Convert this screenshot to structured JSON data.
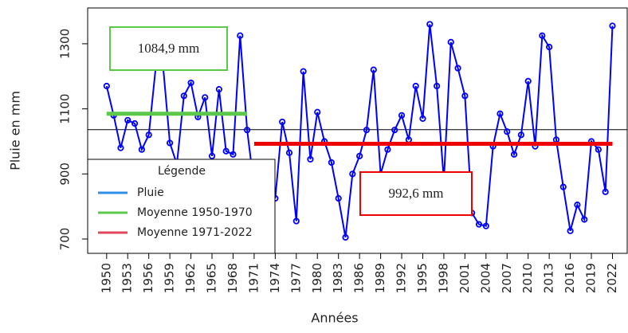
{
  "chart_data": {
    "type": "line",
    "x_label": "Années",
    "y_label": "Pluie en mm",
    "x": [
      1950,
      1951,
      1952,
      1953,
      1954,
      1955,
      1956,
      1957,
      1958,
      1959,
      1960,
      1961,
      1962,
      1963,
      1964,
      1965,
      1966,
      1967,
      1968,
      1969,
      1970,
      1971,
      1972,
      1973,
      1974,
      1975,
      1976,
      1977,
      1978,
      1979,
      1980,
      1981,
      1982,
      1983,
      1984,
      1985,
      1986,
      1987,
      1988,
      1989,
      1990,
      1991,
      1992,
      1993,
      1994,
      1995,
      1996,
      1997,
      1998,
      1999,
      2000,
      2001,
      2002,
      2003,
      2004,
      2005,
      2006,
      2007,
      2008,
      2009,
      2010,
      2011,
      2012,
      2013,
      2014,
      2015,
      2016,
      2017,
      2018,
      2019,
      2020,
      2021,
      2022
    ],
    "series": [
      {
        "name": "Pluie",
        "color": "#0000ff",
        "legend_color": "#2f8fe8",
        "values": [
          1170,
          1080,
          980,
          1065,
          1055,
          975,
          1020,
          1230,
          1240,
          995,
          930,
          1140,
          1180,
          1075,
          1135,
          955,
          1160,
          970,
          960,
          1325,
          1035,
          860,
          900,
          935,
          825,
          1060,
          965,
          755,
          1215,
          945,
          1090,
          1000,
          935,
          825,
          705,
          900,
          955,
          1035,
          1220,
          900,
          975,
          1035,
          1080,
          1005,
          1170,
          1070,
          1360,
          1170,
          880,
          1305,
          1225,
          1140,
          780,
          745,
          740,
          985,
          1085,
          1030,
          960,
          1020,
          1185,
          985,
          1325,
          1290,
          1005,
          860,
          725,
          805,
          760,
          1000,
          975,
          845,
          1355
        ]
      }
    ],
    "means": [
      {
        "name": "Moyenne 1950-1970",
        "color": "#5cc84a",
        "from": 1950,
        "to": 1970,
        "value": 1084.9,
        "value_label": "1084,9 mm"
      },
      {
        "name": "Moyenne 1971-2022",
        "color": "#ee0000",
        "legend_color": "#e0455a",
        "from": 1971,
        "to": 2022,
        "value": 992.6,
        "value_label": "992,6 mm"
      }
    ],
    "hline": 1036,
    "legend_title": "Légende",
    "xlim": [
      1947.3,
      2024.1
    ],
    "ylim": [
      656,
      1410
    ],
    "xticks": [
      1950,
      1953,
      1956,
      1959,
      1962,
      1965,
      1968,
      1971,
      1974,
      1977,
      1980,
      1983,
      1986,
      1989,
      1992,
      1995,
      1998,
      2001,
      2004,
      2007,
      2010,
      2013,
      2016,
      2019,
      2022
    ],
    "yticks": [
      700,
      900,
      1100,
      1300
    ]
  }
}
